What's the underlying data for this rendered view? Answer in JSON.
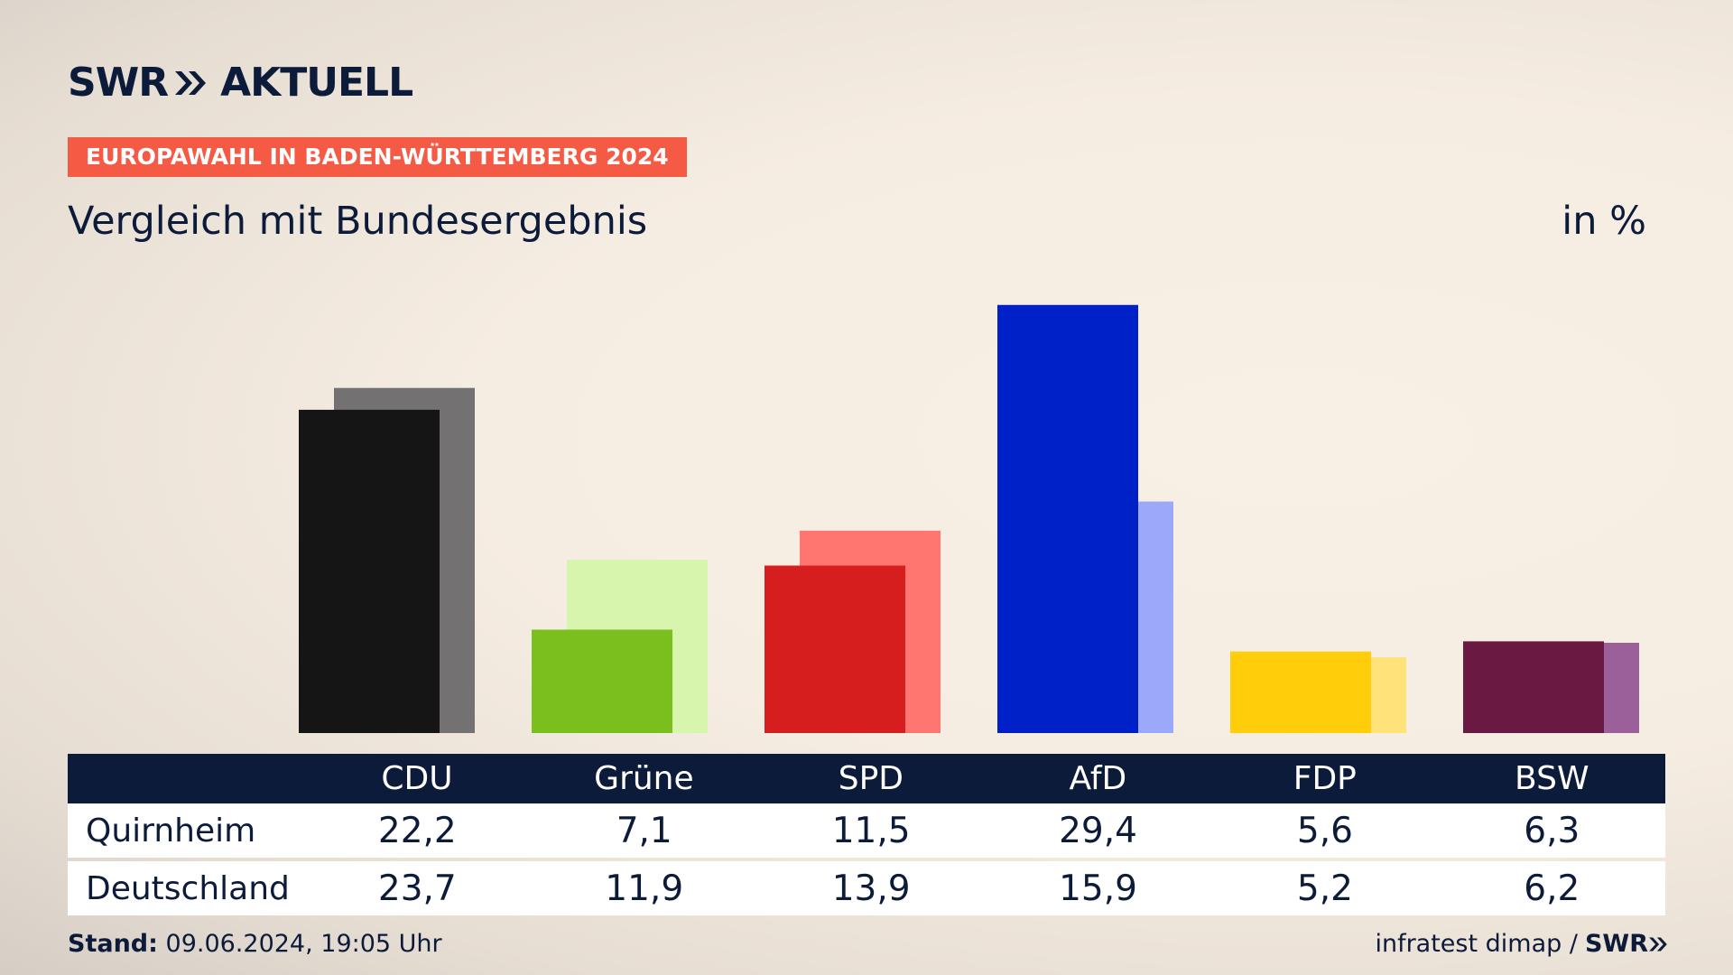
{
  "header": {
    "brand": "SWR",
    "brand_suffix": "AKTUELL",
    "badge": "EUROPAWAHL IN BADEN-WÜRTTEMBERG 2024",
    "subtitle": "Vergleich mit Bundesergebnis",
    "unit": "in %"
  },
  "colors": {
    "navy": "#0d1b3a",
    "badge": "#f45a44"
  },
  "chart_data": {
    "type": "bar",
    "categories": [
      "CDU",
      "Grüne",
      "SPD",
      "AfD",
      "FDP",
      "BSW"
    ],
    "series": [
      {
        "name": "Quirnheim",
        "values": [
          22.2,
          7.1,
          11.5,
          29.4,
          5.6,
          6.3
        ],
        "colors": [
          "#151515",
          "#7abf1d",
          "#d61e1e",
          "#0020c8",
          "#ffcd0a",
          "#6a1a42"
        ]
      },
      {
        "name": "Deutschland",
        "values": [
          23.7,
          11.9,
          13.9,
          15.9,
          5.2,
          6.2
        ],
        "colors": [
          "#737171",
          "#d7f5ac",
          "#ff7670",
          "#9ca9fb",
          "#ffe27a",
          "#9b6099"
        ]
      }
    ],
    "value_labels": {
      "Quirnheim": [
        "22,2",
        "7,1",
        "11,5",
        "29,4",
        "5,6",
        "6,3"
      ],
      "Deutschland": [
        "23,7",
        "11,9",
        "13,9",
        "15,9",
        "5,2",
        "6,2"
      ]
    }
  },
  "footer": {
    "stand_label": "Stand:",
    "stand_value": "09.06.2024, 19:05 Uhr",
    "source": "infratest dimap /",
    "source_brand": "SWR"
  }
}
